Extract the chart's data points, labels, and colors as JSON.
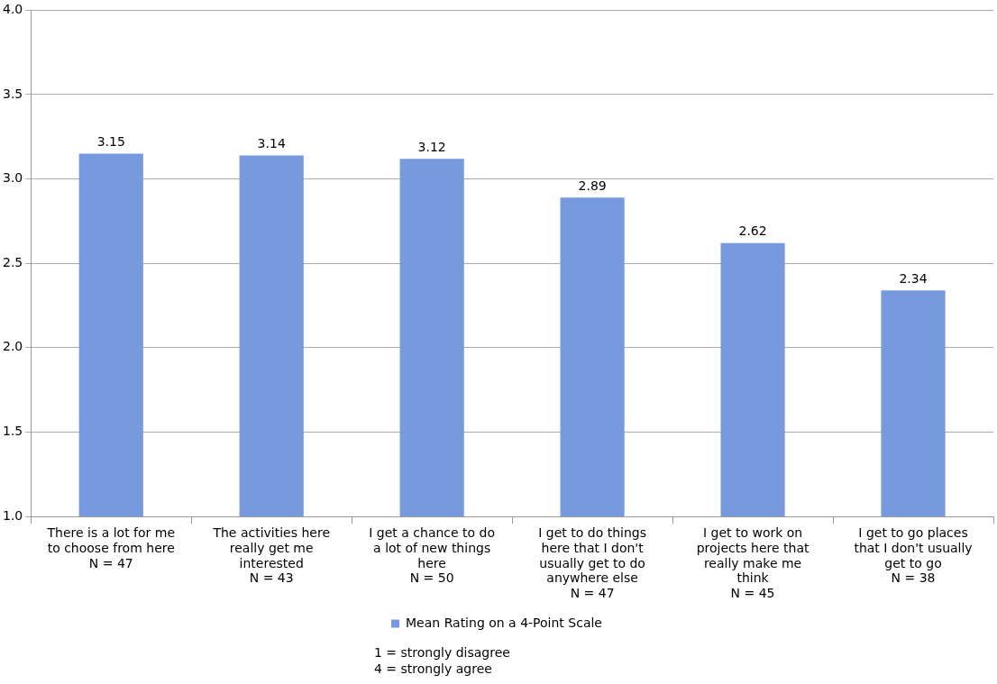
{
  "chart_data": {
    "type": "bar",
    "categories": [
      "There is a lot for me\nto choose from here\nN = 47",
      "The activities here\nreally get me\ninterested\nN = 43",
      "I get a chance to do\na lot of new things\nhere\nN = 50",
      "I get to do things\nhere that I don't\nusually get to do\nanywhere else\nN = 47",
      "I get to work on\nprojects here that\nreally make me\nthink\nN = 45",
      "I get to go places\nthat I don't usually\nget to go\nN = 38"
    ],
    "series": [
      {
        "name": "Mean Rating on a 4-Point Scale",
        "color": "#7799dd",
        "values": [
          3.15,
          3.14,
          3.12,
          2.89,
          2.62,
          2.34
        ]
      }
    ],
    "ylim": [
      1.0,
      4.0
    ],
    "yticks": [
      {
        "value": 1,
        "label": "1.0"
      },
      {
        "value": 1.5,
        "label": "1.5"
      },
      {
        "value": 2,
        "label": "2.0"
      },
      {
        "value": 2.5,
        "label": "2.5"
      },
      {
        "value": 3,
        "label": "3.0"
      },
      {
        "value": 3.5,
        "label": "3.5"
      },
      {
        "value": 4,
        "label": "4.0"
      }
    ],
    "grid": "y",
    "legend": "bottom",
    "data_labels": true,
    "annotations": [
      "1 = strongly disagree",
      "4 = strongly agree"
    ]
  }
}
